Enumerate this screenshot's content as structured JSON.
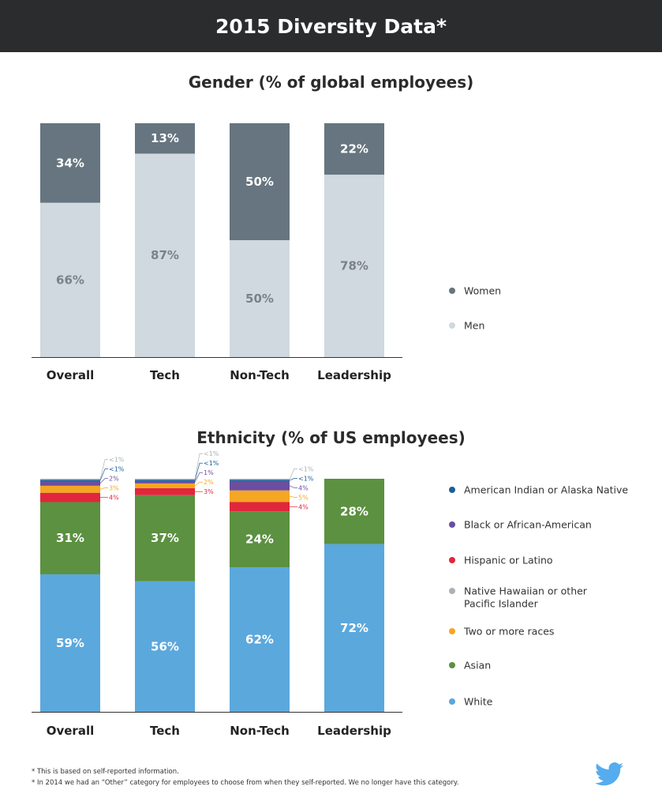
{
  "header": {
    "title": "2015 Diversity Data*"
  },
  "chart_data": [
    {
      "type": "bar",
      "stacked": true,
      "title": "Gender (% of global employees)",
      "categories": [
        "Overall",
        "Tech",
        "Non-Tech",
        "Leadership"
      ],
      "ylim": [
        0,
        100
      ],
      "series": [
        {
          "name": "Men",
          "color": "#cfd9df",
          "values": [
            66,
            87,
            50,
            78
          ],
          "labels": [
            "66%",
            "87%",
            "50%",
            "78%"
          ]
        },
        {
          "name": "Women",
          "color": "#66757f",
          "values": [
            34,
            13,
            50,
            22
          ],
          "labels": [
            "34%",
            "13%",
            "50%",
            "22%"
          ]
        }
      ],
      "legend": [
        "Women",
        "Men"
      ],
      "legend_position": "right"
    },
    {
      "type": "bar",
      "stacked": true,
      "title": "Ethnicity (% of US employees)",
      "categories": [
        "Overall",
        "Tech",
        "Non-Tech",
        "Leadership"
      ],
      "ylim": [
        0,
        100
      ],
      "series": [
        {
          "name": "White",
          "color": "#5ba8dd",
          "values": [
            59,
            56,
            62,
            72
          ],
          "labels": [
            "59%",
            "56%",
            "62%",
            "72%"
          ]
        },
        {
          "name": "Asian",
          "color": "#5b9140",
          "values": [
            31,
            37,
            24,
            28
          ],
          "labels": [
            "31%",
            "37%",
            "24%",
            "28%"
          ]
        },
        {
          "name": "Hispanic or Latino",
          "color": "#e0273c",
          "values": [
            4,
            3,
            4,
            0
          ],
          "labels": [
            "4%",
            "3%",
            "4%",
            ""
          ]
        },
        {
          "name": "Two or more races",
          "color": "#f5a623",
          "values": [
            3,
            2,
            5,
            0
          ],
          "labels": [
            "3%",
            "2%",
            "5%",
            ""
          ]
        },
        {
          "name": "Black or African-American",
          "color": "#6b4ea0",
          "values": [
            2,
            1,
            4,
            0
          ],
          "labels": [
            "2%",
            "1%",
            "4%",
            ""
          ]
        },
        {
          "name": "American Indian or Alaska Native",
          "color": "#1a5f99",
          "values": [
            0.5,
            0.5,
            0.5,
            0
          ],
          "labels": [
            "<1%",
            "<1%",
            "<1%",
            ""
          ]
        },
        {
          "name": "Native Hawaiian or other Pacific Islander",
          "color": "#aab2b8",
          "values": [
            0.5,
            0.5,
            0.5,
            0
          ],
          "labels": [
            "<1%",
            "<1%",
            "<1%",
            ""
          ]
        }
      ],
      "legend": [
        {
          "text": "American Indian or Alaska Native",
          "color": "#1a5f99"
        },
        {
          "text": "Black or African-American",
          "color": "#6b4ea0"
        },
        {
          "text": "Hispanic or Latino",
          "color": "#e0273c"
        },
        {
          "text": "Native Hawaiian or other\nPacific Islander",
          "color": "#aab2b8"
        },
        {
          "text": "Two or more races",
          "color": "#f5a623"
        },
        {
          "text": "Asian",
          "color": "#5b9140"
        },
        {
          "text": "White",
          "color": "#5ba8dd"
        }
      ],
      "legend_position": "right"
    }
  ],
  "footnotes": [
    "* This is based on self-reported information.",
    "* In 2014 we had an “Other” category for employees to choose from when they self-reported. We no longer have this category."
  ],
  "brand": {
    "icon": "twitter-bird-icon",
    "color": "#55acee"
  }
}
